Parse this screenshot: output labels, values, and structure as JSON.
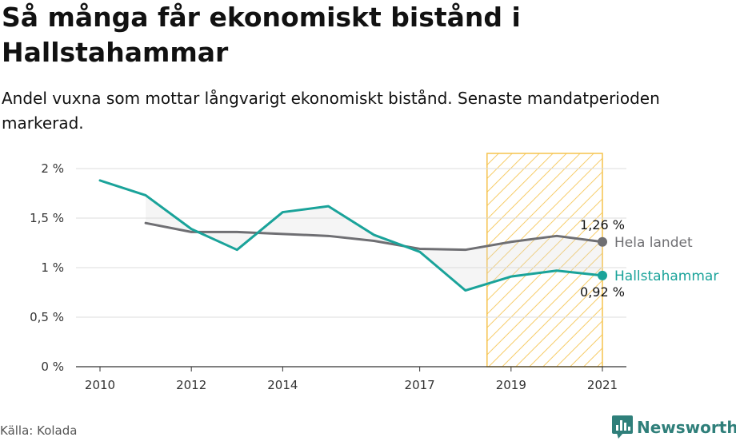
{
  "title": "Så många får ekonomiskt bistånd i Hallstahammar",
  "subtitle": "Andel vuxna som mottar långvarigt ekonomiskt bistånd. Senaste mandatperioden markerad.",
  "source": "Källa: Kolada",
  "brand": "Newsworthy",
  "colors": {
    "hallstahammar": "#1aa39a",
    "hela_landet": "#6f6f73",
    "highlight": "#f5c34d",
    "grid": "#dddddd"
  },
  "chart_data": {
    "type": "line",
    "x_ticks": [
      "2010",
      "2012",
      "2014",
      "2017",
      "2019",
      "2021"
    ],
    "y_ticks": [
      "0 %",
      "0,5 %",
      "1 %",
      "1,5 %",
      "2 %"
    ],
    "ylim": [
      0,
      2
    ],
    "xlim": [
      2010,
      2021
    ],
    "grid": "horizontal",
    "highlight_period": [
      2019,
      2021
    ],
    "series": [
      {
        "name": "Hela landet",
        "x": [
          2011,
          2012,
          2013,
          2014,
          2015,
          2016,
          2017,
          2018,
          2019,
          2020,
          2021
        ],
        "values": [
          1.45,
          1.36,
          1.36,
          1.34,
          1.32,
          1.27,
          1.19,
          1.18,
          1.26,
          1.32,
          1.26
        ],
        "end_label": "1,26 %"
      },
      {
        "name": "Hallstahammar",
        "x": [
          2010,
          2011,
          2012,
          2013,
          2014,
          2015,
          2016,
          2017,
          2018,
          2019,
          2020,
          2021
        ],
        "values": [
          1.88,
          1.73,
          1.39,
          1.18,
          1.56,
          1.62,
          1.33,
          1.16,
          0.77,
          0.91,
          0.97,
          0.92
        ],
        "end_label": "0,92 %"
      }
    ]
  }
}
